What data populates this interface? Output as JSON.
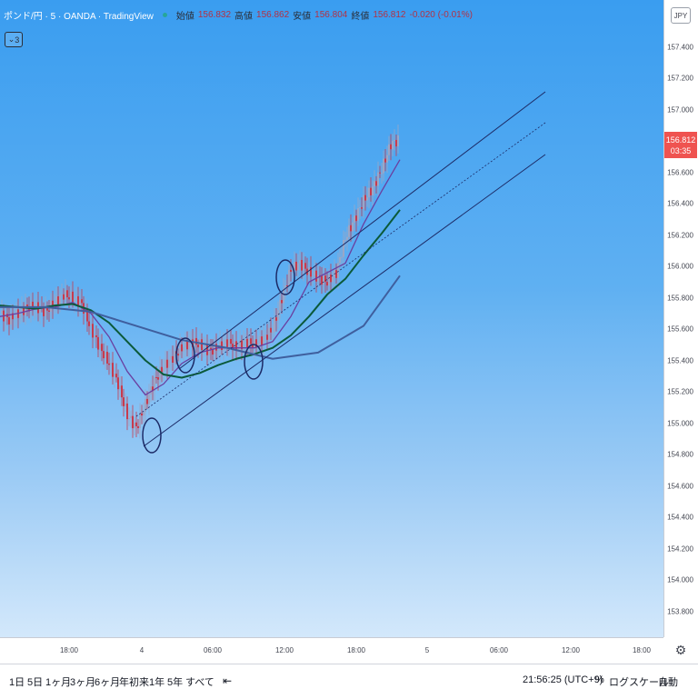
{
  "header": {
    "symbol": "ポンド/円 · 5 · OANDA · TradingView",
    "open_label": "始値",
    "open": "156.832",
    "high_label": "高値",
    "high": "156.862",
    "low_label": "安値",
    "low": "156.804",
    "close_label": "終値",
    "close": "156.812",
    "change": "-0.020 (-0.01%)"
  },
  "indicator_badge": "3",
  "currency": "JPY",
  "price_tag": {
    "price": "156.812",
    "countdown": "03:35"
  },
  "time_axis": [
    "18:00",
    "4",
    "06:00",
    "12:00",
    "18:00",
    "5",
    "06:00",
    "12:00",
    "18:00"
  ],
  "bottom_toolbar": {
    "ranges": [
      "1日",
      "5日",
      "1ヶ月",
      "3ヶ月",
      "6ヶ月",
      "年初来",
      "1年",
      "5年",
      "すべて"
    ],
    "goto_icon": "calendar-goto-icon",
    "clock": "21:56:25 (UTC+9)",
    "percent": "%",
    "log_scale": "ログスケール",
    "auto": "自動"
  },
  "colors": {
    "background_top": "#3a9df0",
    "background_bottom": "#d3e8fb",
    "candle_up": "#9aa7c7",
    "candle_down": "#c73b4e",
    "ma_fast": "#6a3fa0",
    "ma_mid": "#0b5a3a",
    "ma_slow": "#3f5f9e",
    "channel": "#1c2a66",
    "price_tag": "#ef5350"
  },
  "chart_data": {
    "type": "line",
    "title": "",
    "xlabel": "",
    "ylabel": "",
    "ylim": [
      153.6,
      157.7
    ],
    "y_ticks": [
      "157.400",
      "157.200",
      "157.000",
      "156.800",
      "156.600",
      "156.400",
      "156.200",
      "156.000",
      "155.800",
      "155.600",
      "155.400",
      "155.200",
      "155.000",
      "154.800",
      "154.600",
      "154.400",
      "154.200",
      "154.000",
      "153.800"
    ],
    "series": [
      {
        "x": [
          0,
          10,
          20,
          30,
          40,
          50,
          60,
          70,
          80,
          90,
          100,
          110,
          120,
          130,
          140,
          150,
          160,
          170,
          180,
          190,
          200,
          210,
          220,
          230,
          240,
          250,
          260,
          270,
          280,
          290,
          300,
          310,
          320,
          330,
          340,
          350,
          360,
          370,
          380,
          390,
          400,
          410,
          420,
          430,
          440
        ],
        "values": [
          155.7,
          155.66,
          155.7,
          155.74,
          155.74,
          155.71,
          155.77,
          155.82,
          155.8,
          155.76,
          155.6,
          155.48,
          155.38,
          155.25,
          155.05,
          154.97,
          155.12,
          155.27,
          155.36,
          155.42,
          155.48,
          155.52,
          155.5,
          155.46,
          155.48,
          155.52,
          155.48,
          155.52,
          155.5,
          155.54,
          155.6,
          155.8,
          155.98,
          156.02,
          155.96,
          155.93,
          155.9,
          155.96,
          156.18,
          156.3,
          156.42,
          156.5,
          156.62,
          156.78,
          156.81
        ]
      },
      {
        "x": [
          0,
          20,
          40,
          60,
          80,
          100,
          120,
          140,
          160,
          180,
          200,
          220,
          240,
          260,
          280,
          300,
          320,
          340,
          360,
          380,
          400,
          420,
          440
        ],
        "values": [
          155.68,
          155.7,
          155.73,
          155.74,
          155.77,
          155.7,
          155.55,
          155.33,
          155.18,
          155.25,
          155.38,
          155.45,
          155.48,
          155.48,
          155.48,
          155.52,
          155.68,
          155.9,
          155.96,
          156.02,
          156.27,
          156.48,
          156.68
        ]
      },
      {
        "x": [
          0,
          20,
          40,
          60,
          80,
          100,
          120,
          140,
          160,
          180,
          200,
          220,
          240,
          260,
          280,
          300,
          320,
          340,
          360,
          380,
          400,
          420,
          440
        ],
        "values": [
          155.75,
          155.74,
          155.73,
          155.75,
          155.76,
          155.72,
          155.64,
          155.52,
          155.4,
          155.31,
          155.29,
          155.32,
          155.37,
          155.41,
          155.44,
          155.48,
          155.56,
          155.68,
          155.82,
          155.92,
          156.07,
          156.21,
          156.36
        ]
      },
      {
        "x": [
          0,
          50,
          100,
          150,
          200,
          250,
          300,
          350,
          400,
          440
        ],
        "values": [
          155.74,
          155.74,
          155.71,
          155.62,
          155.53,
          155.48,
          155.41,
          155.45,
          155.62,
          155.94
        ]
      }
    ]
  }
}
